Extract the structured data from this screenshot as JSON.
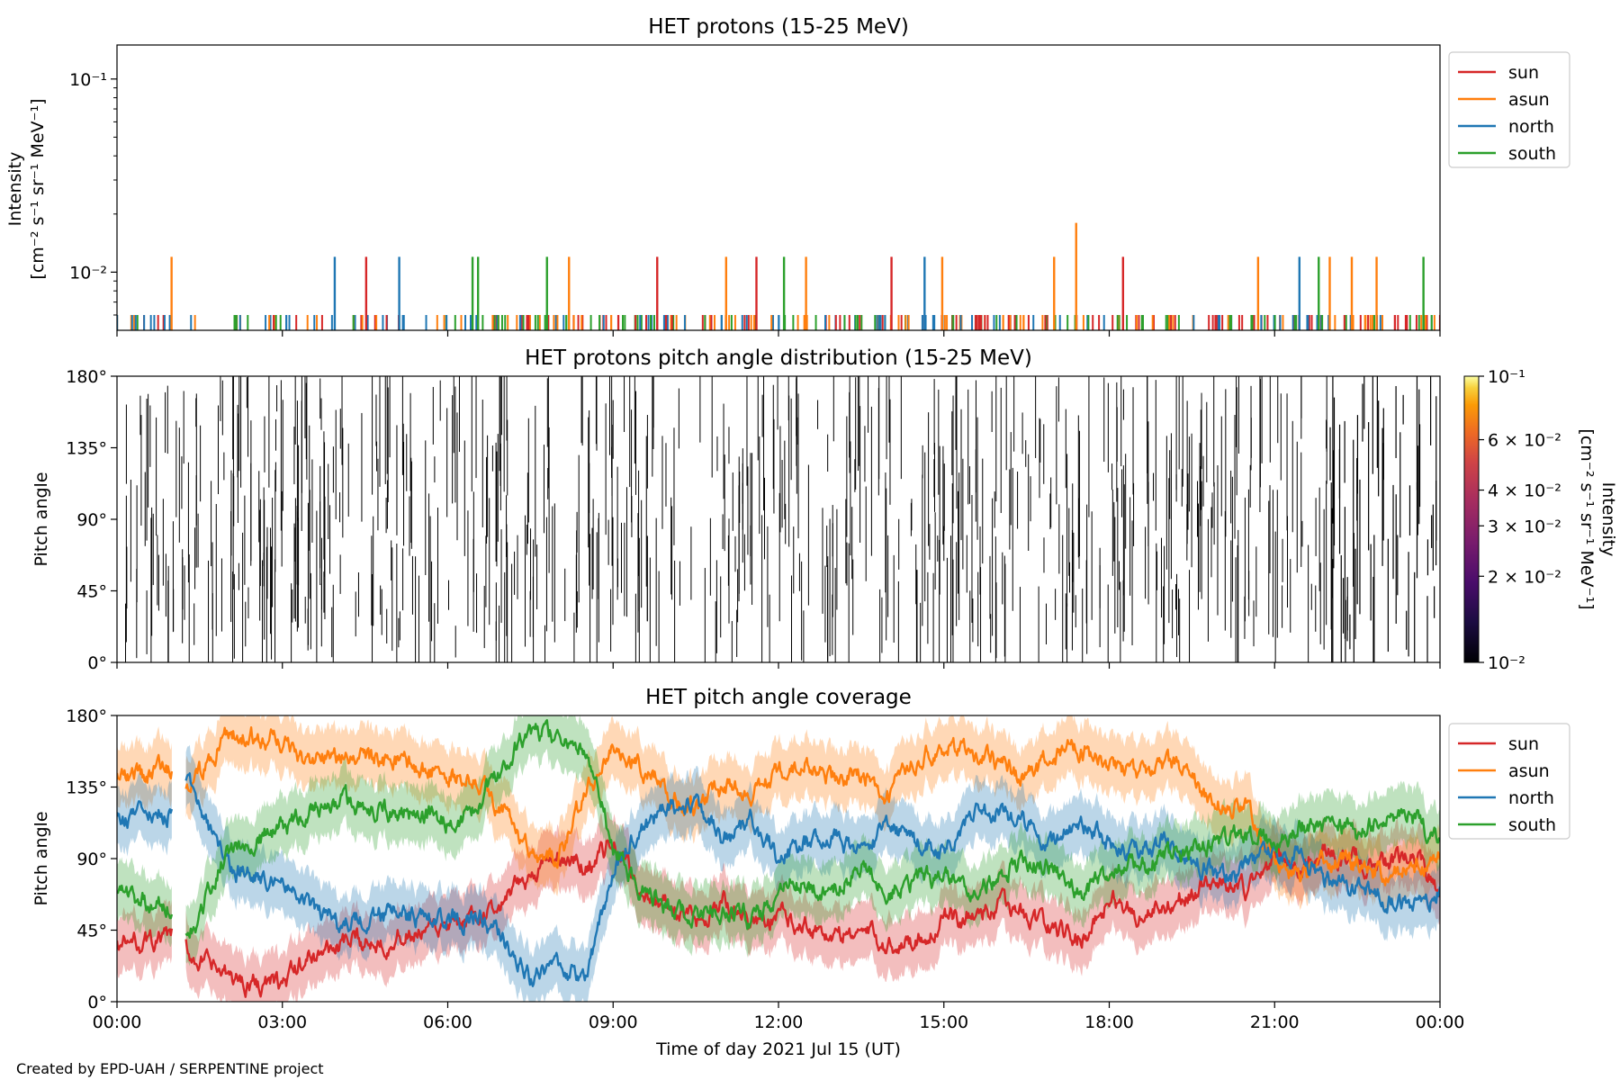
{
  "colors": {
    "sun": "#d62728",
    "asun": "#ff7f0e",
    "north": "#1f77b4",
    "south": "#2ca02c"
  },
  "chart_data": [
    {
      "id": "intensity",
      "type": "line",
      "title": "HET protons (15-25 MeV)",
      "ylabel_lines": [
        "Intensity",
        "[cm⁻² s⁻¹ sr⁻¹ MeV⁻¹]"
      ],
      "yscale": "log",
      "ylim": [
        0.005,
        0.15
      ],
      "yticks": [
        {
          "value": 0.1,
          "label": "10⁻¹"
        },
        {
          "value": 0.01,
          "label": "10⁻²"
        }
      ],
      "xlim_hours": [
        0,
        24
      ],
      "legend": {
        "placement": "outside-right-top",
        "entries": [
          "sun",
          "asun",
          "north",
          "south"
        ]
      },
      "baseline_value": 0.006,
      "base_spike_count": 380,
      "spike_value": 0.012,
      "spikes": [
        {
          "t": 0.99,
          "series": "asun",
          "value": 0.012
        },
        {
          "t": 3.95,
          "series": "north",
          "value": 0.012
        },
        {
          "t": 4.52,
          "series": "sun",
          "value": 0.012
        },
        {
          "t": 5.12,
          "series": "north",
          "value": 0.012
        },
        {
          "t": 6.45,
          "series": "south",
          "value": 0.012
        },
        {
          "t": 6.55,
          "series": "south",
          "value": 0.012
        },
        {
          "t": 7.8,
          "series": "south",
          "value": 0.012
        },
        {
          "t": 8.2,
          "series": "asun",
          "value": 0.012
        },
        {
          "t": 9.8,
          "series": "sun",
          "value": 0.012
        },
        {
          "t": 11.05,
          "series": "asun",
          "value": 0.012
        },
        {
          "t": 11.6,
          "series": "sun",
          "value": 0.012
        },
        {
          "t": 12.1,
          "series": "south",
          "value": 0.012
        },
        {
          "t": 12.5,
          "series": "asun",
          "value": 0.012
        },
        {
          "t": 14.05,
          "series": "sun",
          "value": 0.012
        },
        {
          "t": 14.65,
          "series": "north",
          "value": 0.012
        },
        {
          "t": 14.97,
          "series": "asun",
          "value": 0.012
        },
        {
          "t": 17.0,
          "series": "asun",
          "value": 0.012
        },
        {
          "t": 17.4,
          "series": "asun",
          "value": 0.018
        },
        {
          "t": 18.25,
          "series": "sun",
          "value": 0.012
        },
        {
          "t": 20.7,
          "series": "asun",
          "value": 0.012
        },
        {
          "t": 21.45,
          "series": "north",
          "value": 0.012
        },
        {
          "t": 21.8,
          "series": "south",
          "value": 0.012
        },
        {
          "t": 22.0,
          "series": "asun",
          "value": 0.012
        },
        {
          "t": 22.4,
          "series": "asun",
          "value": 0.012
        },
        {
          "t": 22.85,
          "series": "asun",
          "value": 0.012
        },
        {
          "t": 23.7,
          "series": "south",
          "value": 0.012
        }
      ]
    },
    {
      "id": "pad",
      "type": "heatmap",
      "title": "HET protons pitch angle distribution (15-25 MeV)",
      "ylabel": "Pitch angle",
      "ylim": [
        0,
        180
      ],
      "yticks": [
        {
          "value": 0,
          "label": "0°"
        },
        {
          "value": 45,
          "label": "45°"
        },
        {
          "value": 90,
          "label": "90°"
        },
        {
          "value": 135,
          "label": "135°"
        },
        {
          "value": 180,
          "label": "180°"
        }
      ],
      "xlim_hours": [
        0,
        24
      ],
      "stroke_count": 720,
      "colorbar": {
        "scale": "log",
        "colormap": "inferno",
        "range": [
          0.01,
          0.1
        ],
        "label_lines": [
          "Intensity",
          "[cm⁻² s⁻¹ sr⁻¹ MeV⁻¹]"
        ],
        "ticks": [
          {
            "value": 0.1,
            "label": "10⁻¹"
          },
          {
            "value": 0.06,
            "label": "6 × 10⁻²"
          },
          {
            "value": 0.04,
            "label": "4 × 10⁻²"
          },
          {
            "value": 0.03,
            "label": "3 × 10⁻²"
          },
          {
            "value": 0.02,
            "label": "2 × 10⁻²"
          },
          {
            "value": 0.01,
            "label": "10⁻²"
          }
        ]
      }
    },
    {
      "id": "coverage",
      "type": "line",
      "title": "HET pitch angle coverage",
      "ylabel": "Pitch angle",
      "ylim": [
        0,
        180
      ],
      "yticks": [
        {
          "value": 0,
          "label": "0°"
        },
        {
          "value": 45,
          "label": "45°"
        },
        {
          "value": 90,
          "label": "90°"
        },
        {
          "value": 135,
          "label": "135°"
        },
        {
          "value": 180,
          "label": "180°"
        }
      ],
      "xlabel": "Time of day 2021 Jul 15 (UT)",
      "xlim_hours": [
        0,
        24
      ],
      "xticks": [
        {
          "value": 0,
          "label": "00:00"
        },
        {
          "value": 3,
          "label": "03:00"
        },
        {
          "value": 6,
          "label": "06:00"
        },
        {
          "value": 9,
          "label": "09:00"
        },
        {
          "value": 12,
          "label": "12:00"
        },
        {
          "value": 15,
          "label": "15:00"
        },
        {
          "value": 18,
          "label": "18:00"
        },
        {
          "value": 21,
          "label": "21:00"
        },
        {
          "value": 24,
          "label": "00:00"
        }
      ],
      "legend": {
        "placement": "outside-right-top",
        "entries": [
          "sun",
          "asun",
          "north",
          "south"
        ]
      },
      "band_halfwidth_deg": 18,
      "data_gap_hours": [
        1.0,
        1.25
      ],
      "series": [
        {
          "name": "sun",
          "anchors_t": [
            0,
            1,
            1.3,
            2,
            2.5,
            3,
            3.5,
            4,
            5,
            6,
            6.5,
            7,
            7.5,
            8,
            8.5,
            9,
            9.5,
            10,
            10.5,
            11,
            11.5,
            12,
            12.5,
            13,
            13.5,
            14,
            14.5,
            15,
            15.5,
            16,
            16.5,
            17,
            17.5,
            18,
            18.5,
            19,
            19.5,
            20,
            20.5,
            21,
            21.5,
            22,
            22.5,
            23,
            23.5,
            24
          ],
          "anchors_v": [
            35,
            40,
            30,
            15,
            12,
            10,
            28,
            35,
            40,
            45,
            50,
            60,
            80,
            90,
            85,
            100,
            70,
            60,
            50,
            65,
            45,
            55,
            50,
            40,
            45,
            35,
            40,
            50,
            55,
            60,
            55,
            45,
            40,
            65,
            55,
            60,
            70,
            75,
            70,
            90,
            85,
            95,
            90,
            85,
            95,
            70
          ]
        },
        {
          "name": "asun",
          "anchors_t": [
            0,
            1,
            1.3,
            2,
            2.5,
            3,
            3.5,
            4,
            5,
            6,
            6.5,
            7,
            7.5,
            8,
            8.5,
            9,
            9.5,
            10,
            10.5,
            11,
            11.5,
            12,
            12.5,
            13,
            13.5,
            14,
            14.5,
            15,
            15.5,
            16,
            16.5,
            17,
            17.5,
            18,
            18.5,
            19,
            19.5,
            20,
            20.5,
            21,
            21.5,
            22,
            22.5,
            23,
            23.5,
            24
          ],
          "anchors_v": [
            140,
            145,
            130,
            170,
            165,
            165,
            150,
            155,
            150,
            145,
            140,
            120,
            95,
            90,
            130,
            160,
            150,
            130,
            120,
            135,
            130,
            145,
            150,
            140,
            145,
            130,
            150,
            160,
            155,
            150,
            140,
            155,
            160,
            145,
            140,
            150,
            140,
            125,
            120,
            90,
            80,
            90,
            85,
            80,
            85,
            90
          ]
        },
        {
          "name": "north",
          "anchors_t": [
            0,
            1,
            1.3,
            2,
            2.5,
            3,
            3.5,
            4,
            5,
            6,
            6.5,
            7,
            7.5,
            8,
            8.5,
            9,
            9.5,
            10,
            10.5,
            11,
            11.5,
            12,
            12.5,
            13,
            13.5,
            14,
            14.5,
            15,
            15.5,
            16,
            16.5,
            17,
            17.5,
            18,
            18.5,
            19,
            19.5,
            20,
            20.5,
            21,
            21.5,
            22,
            22.5,
            23,
            23.5,
            24
          ],
          "anchors_v": [
            115,
            120,
            140,
            85,
            80,
            75,
            60,
            50,
            55,
            50,
            55,
            40,
            15,
            20,
            15,
            80,
            110,
            120,
            130,
            100,
            115,
            90,
            100,
            105,
            90,
            110,
            100,
            95,
            115,
            120,
            110,
            100,
            115,
            100,
            95,
            100,
            90,
            80,
            85,
            95,
            90,
            75,
            70,
            65,
            60,
            70
          ]
        },
        {
          "name": "south",
          "anchors_t": [
            0,
            1,
            1.3,
            2,
            2.5,
            3,
            3.5,
            4,
            5,
            6,
            6.5,
            7,
            7.5,
            8,
            8.5,
            9,
            9.5,
            10,
            10.5,
            11,
            11.5,
            12,
            12.5,
            13,
            13.5,
            14,
            14.5,
            15,
            15.5,
            16,
            16.5,
            17,
            17.5,
            18,
            18.5,
            19,
            19.5,
            20,
            20.5,
            21,
            21.5,
            22,
            22.5,
            23,
            23.5,
            24
          ],
          "anchors_v": [
            65,
            60,
            40,
            95,
            100,
            110,
            120,
            125,
            120,
            115,
            120,
            150,
            170,
            165,
            160,
            100,
            70,
            60,
            55,
            60,
            50,
            70,
            75,
            70,
            85,
            70,
            75,
            80,
            70,
            80,
            90,
            85,
            70,
            80,
            85,
            90,
            95,
            100,
            105,
            100,
            110,
            110,
            105,
            120,
            115,
            100
          ]
        }
      ]
    }
  ],
  "credit": "Created by EPD-UAH / SERPENTINE project"
}
